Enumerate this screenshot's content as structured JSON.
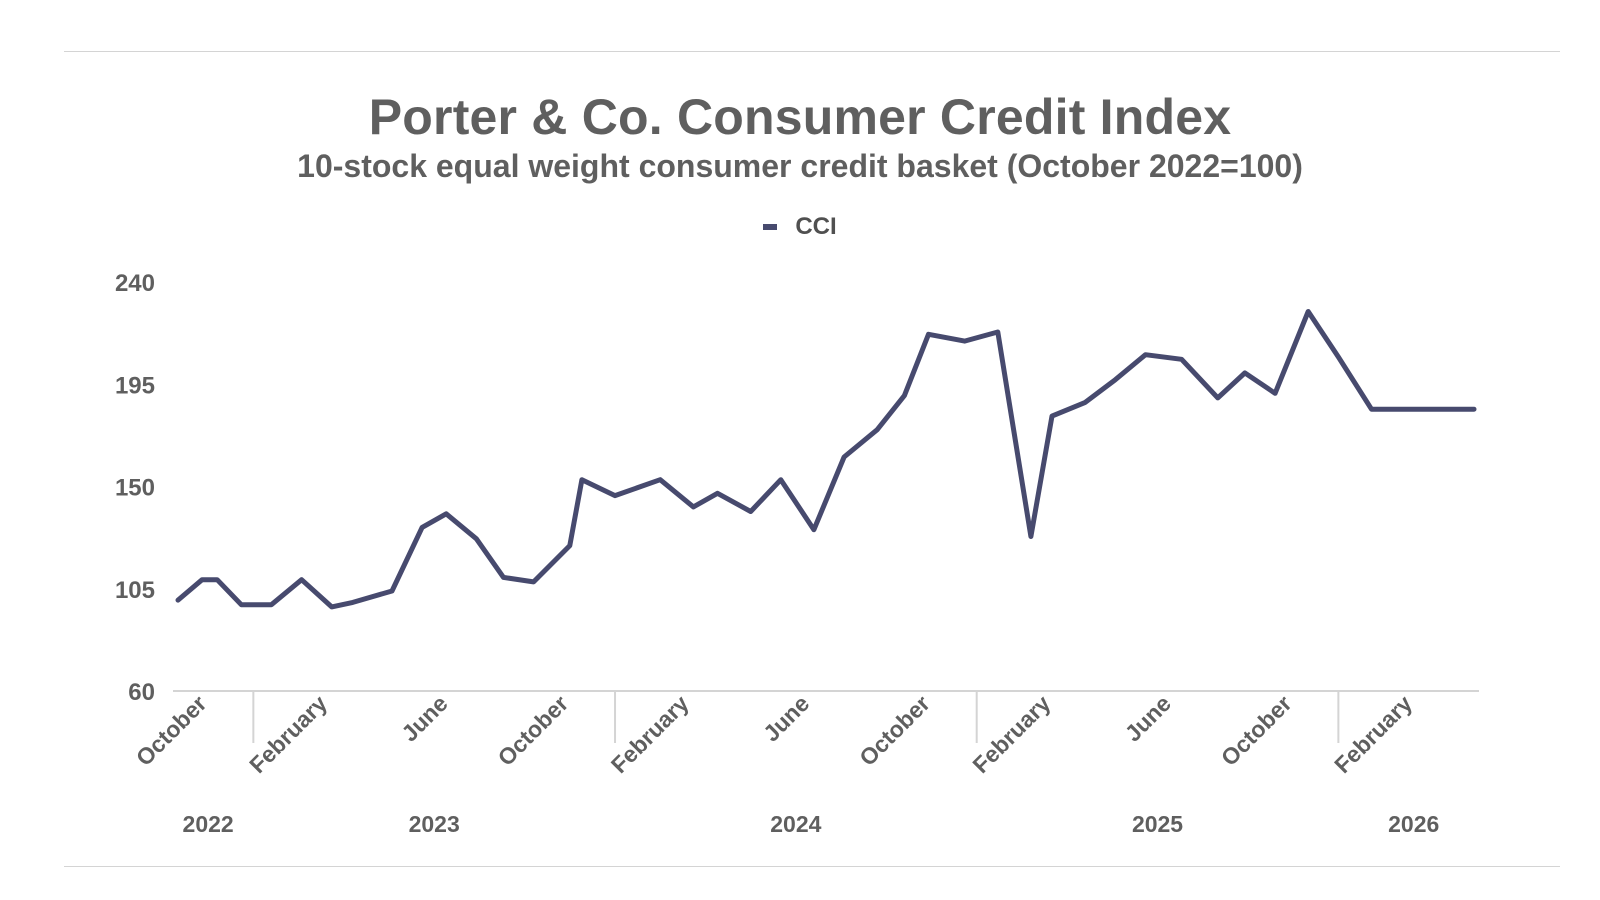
{
  "title": "Porter & Co. Consumer Credit Index",
  "subtitle": "10-stock equal weight consumer credit basket (October 2022=100)",
  "legend": {
    "label": "CCI"
  },
  "colors": {
    "line": "#474a6e",
    "text": "#5f5f5f",
    "axis": "#d4d4d4"
  },
  "chart_data": {
    "type": "line",
    "title": "Porter & Co. Consumer Credit Index",
    "subtitle": "10-stock equal weight consumer credit basket (October 2022=100)",
    "xlabel": "",
    "ylabel": "",
    "ylim": [
      60,
      240
    ],
    "yticks": [
      60,
      105,
      150,
      195,
      240
    ],
    "grid": false,
    "legend_position": "top-center",
    "month_ticks": [
      "October",
      "February",
      "June",
      "October",
      "February",
      "June",
      "October",
      "February",
      "June",
      "October",
      "February"
    ],
    "year_labels": [
      "2022",
      "2023",
      "2024",
      "2025",
      "2026"
    ],
    "series": [
      {
        "name": "CCI",
        "x": [
          0,
          0.8,
          1.3,
          2.1,
          3.1,
          4.1,
          5.1,
          5.8,
          7.1,
          8.1,
          8.9,
          9.9,
          10.8,
          11.8,
          13.0,
          13.4,
          14.5,
          16.0,
          17.1,
          17.9,
          19.0,
          20.0,
          21.1,
          22.1,
          23.2,
          24.1,
          24.9,
          26.1,
          27.2,
          28.3,
          29.0,
          30.1,
          31.1,
          32.1,
          33.3,
          34.5,
          35.4,
          36.4,
          37.5,
          38.5,
          39.6,
          40.5,
          41.3,
          43.0
        ],
        "values": [
          100,
          109,
          109,
          98,
          98,
          109,
          97,
          99,
          104,
          132,
          138,
          127,
          110,
          108,
          124,
          153,
          146,
          153,
          141,
          147,
          139,
          153,
          131,
          163,
          175,
          190,
          217,
          214,
          218,
          128,
          181,
          187,
          197,
          208,
          206,
          189,
          200,
          191,
          227,
          207,
          184,
          184,
          184,
          184
        ]
      }
    ]
  }
}
